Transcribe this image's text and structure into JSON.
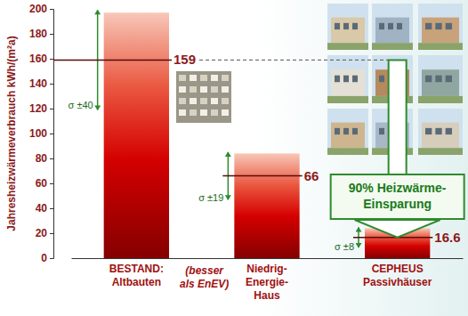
{
  "chart_data": {
    "type": "bar",
    "y_label": "Jahresheizwärmeverbrauch kWh/(m²a)",
    "categories": [
      "BESTAND: Altbauten",
      "Niedrig-Energie-Haus",
      "CEPHEUS Passivhäuser"
    ],
    "values": [
      197,
      84,
      24
    ],
    "color": "#d40000",
    "ylim": [
      0,
      200
    ],
    "yticks": [
      0,
      20,
      40,
      60,
      80,
      100,
      120,
      140,
      160,
      180,
      200
    ],
    "grid": false,
    "means": [
      159,
      66,
      16.6
    ],
    "sigma": [
      40,
      19,
      8
    ],
    "sigma_labels": [
      "σ ±40",
      "σ ±19",
      "σ ±8"
    ],
    "annotations": [
      "90% Heizwärme-Einsparung",
      "(besser als EnEV)"
    ]
  }
}
